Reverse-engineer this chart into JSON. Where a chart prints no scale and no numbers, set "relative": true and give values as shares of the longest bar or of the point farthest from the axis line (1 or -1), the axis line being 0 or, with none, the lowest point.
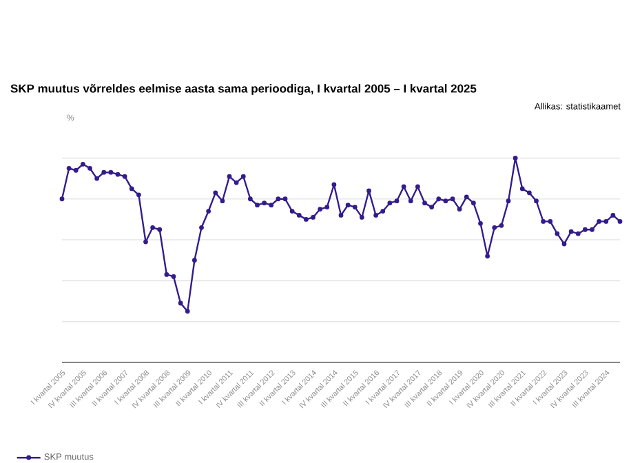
{
  "chart_data": {
    "type": "line",
    "title": "SKP muutus võrreldes eelmise aasta sama perioodiga, I kvartal 2005 – I kvartal 2025",
    "ylabel": "%",
    "annotations": [
      "Allikas: statistikaamet"
    ],
    "relative": true,
    "grid": "y",
    "legend": "bottom left",
    "marker": "circle",
    "line_style": "solid",
    "categories": [
      "I kvartal 2005",
      null,
      null,
      "IV kvartal 2005",
      null,
      null,
      "III kvartal 2006",
      null,
      null,
      "II kvartal 2007",
      null,
      null,
      "I kvartal 2008",
      null,
      null,
      "IV kvartal 2008",
      null,
      null,
      "III kvartal 2009",
      null,
      null,
      "II kvartal 2010",
      null,
      null,
      "I kvartal 2011",
      null,
      null,
      "IV kvartal 2011",
      null,
      null,
      "III kvartal 2012",
      null,
      null,
      "II kvartal 2013",
      null,
      null,
      "I kvartal 2014",
      null,
      null,
      "IV kvartal 2014",
      null,
      null,
      "III kvartal 2015",
      null,
      null,
      "II kvartal 2016",
      null,
      null,
      "I kvartal 2017",
      null,
      null,
      "IV kvartal 2017",
      null,
      null,
      "III kvartal 2018",
      null,
      null,
      "II kvartal 2019",
      null,
      null,
      "I kvartal 2020",
      null,
      null,
      "IV kvartal 2020",
      null,
      null,
      "III kvartal 2021",
      null,
      null,
      "II kvartal 2022",
      null,
      null,
      "I kvartal 2023",
      null,
      null,
      "IV kvartal 2023",
      null,
      null,
      "III kvartal 2024",
      null,
      null
    ],
    "series": [
      {
        "name": "SKP muutus",
        "color": "#341c8c",
        "values": [
          0.8,
          0.95,
          0.94,
          0.97,
          0.95,
          0.9,
          0.93,
          0.93,
          0.92,
          0.91,
          0.85,
          0.82,
          0.59,
          0.66,
          0.65,
          0.43,
          0.42,
          0.29,
          0.25,
          0.5,
          0.66,
          0.74,
          0.83,
          0.79,
          0.91,
          0.88,
          0.91,
          0.8,
          0.77,
          0.78,
          0.77,
          0.8,
          0.8,
          0.74,
          0.72,
          0.7,
          0.71,
          0.75,
          0.76,
          0.87,
          0.72,
          0.77,
          0.76,
          0.71,
          0.84,
          0.72,
          0.74,
          0.78,
          0.79,
          0.86,
          0.79,
          0.86,
          0.78,
          0.76,
          0.8,
          0.79,
          0.8,
          0.75,
          0.81,
          0.78,
          0.68,
          0.52,
          0.66,
          0.67,
          0.79,
          1.0,
          0.85,
          0.83,
          0.79,
          0.69,
          0.69,
          0.63,
          0.58,
          0.64,
          0.63,
          0.65,
          0.65,
          0.69,
          0.69,
          0.72,
          0.69
        ]
      }
    ]
  }
}
